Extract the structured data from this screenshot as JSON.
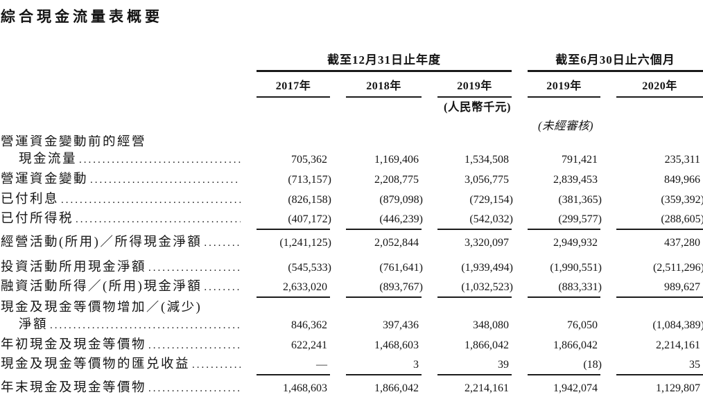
{
  "page": {
    "title": "綜合現金流量表概要"
  },
  "table": {
    "header": {
      "groups": [
        {
          "label": "截至12月31日止年度",
          "years": [
            "2017年",
            "2018年",
            "2019年"
          ]
        },
        {
          "label": "截至6月30日止六個月",
          "years": [
            "2019年",
            "2020年"
          ]
        }
      ],
      "unit_note": "(人民幣千元)",
      "audit_note": "(未經審核)"
    },
    "rows": [
      {
        "label": "營運資金變動前的經營",
        "type": "label-only"
      },
      {
        "label": "現金流量",
        "indent": true,
        "leader": true,
        "values": [
          "705,362",
          "1,169,406",
          "1,534,508",
          "791,421",
          "235,311"
        ]
      },
      {
        "label": "營運資金變動",
        "leader": true,
        "values": [
          "(713,157)",
          "2,208,775",
          "3,056,775",
          "2,839,453",
          "849,966"
        ]
      },
      {
        "label": "已付利息",
        "leader": true,
        "values": [
          "(826,158)",
          "(879,098)",
          "(729,154)",
          "(381,365)",
          "(359,392)"
        ]
      },
      {
        "label": "已付所得税",
        "leader": true,
        "rule_below": true,
        "values": [
          "(407,172)",
          "(446,239)",
          "(542,032)",
          "(299,577)",
          "(288,605)"
        ]
      },
      {
        "label": "經營活動(所用)／所得現金淨額",
        "leader": true,
        "gap_after": true,
        "values": [
          "(1,241,125)",
          "2,052,844",
          "3,320,097",
          "2,949,932",
          "437,280"
        ]
      },
      {
        "label": "投資活動所用現金淨額",
        "leader": true,
        "values": [
          "(545,533)",
          "(761,641)",
          "(1,939,494)",
          "(1,990,551)",
          "(2,511,296)"
        ]
      },
      {
        "label": "融資活動所得／(所用)現金淨額",
        "leader": true,
        "rule_below": true,
        "values": [
          "2,633,020",
          "(893,767)",
          "(1,032,523)",
          "(883,331)",
          "989,627"
        ]
      },
      {
        "label": "現金及現金等價物增加／(減少)",
        "type": "label-only"
      },
      {
        "label": "淨額",
        "indent": true,
        "leader": true,
        "values": [
          "846,362",
          "397,436",
          "348,080",
          "76,050",
          "(1,084,389)"
        ]
      },
      {
        "label": "年初現金及現金等價物",
        "leader": true,
        "values": [
          "622,241",
          "1,468,603",
          "1,866,042",
          "1,866,042",
          "2,214,161"
        ]
      },
      {
        "label": "現金及現金等價物的匯兑收益",
        "leader": true,
        "rule_below": true,
        "values": [
          "—",
          "3",
          "39",
          "(18)",
          "35"
        ]
      },
      {
        "label": "年末現金及現金等價物",
        "leader": true,
        "values": [
          "1,468,603",
          "1,866,042",
          "2,214,161",
          "1,942,074",
          "1,129,807"
        ]
      }
    ]
  }
}
